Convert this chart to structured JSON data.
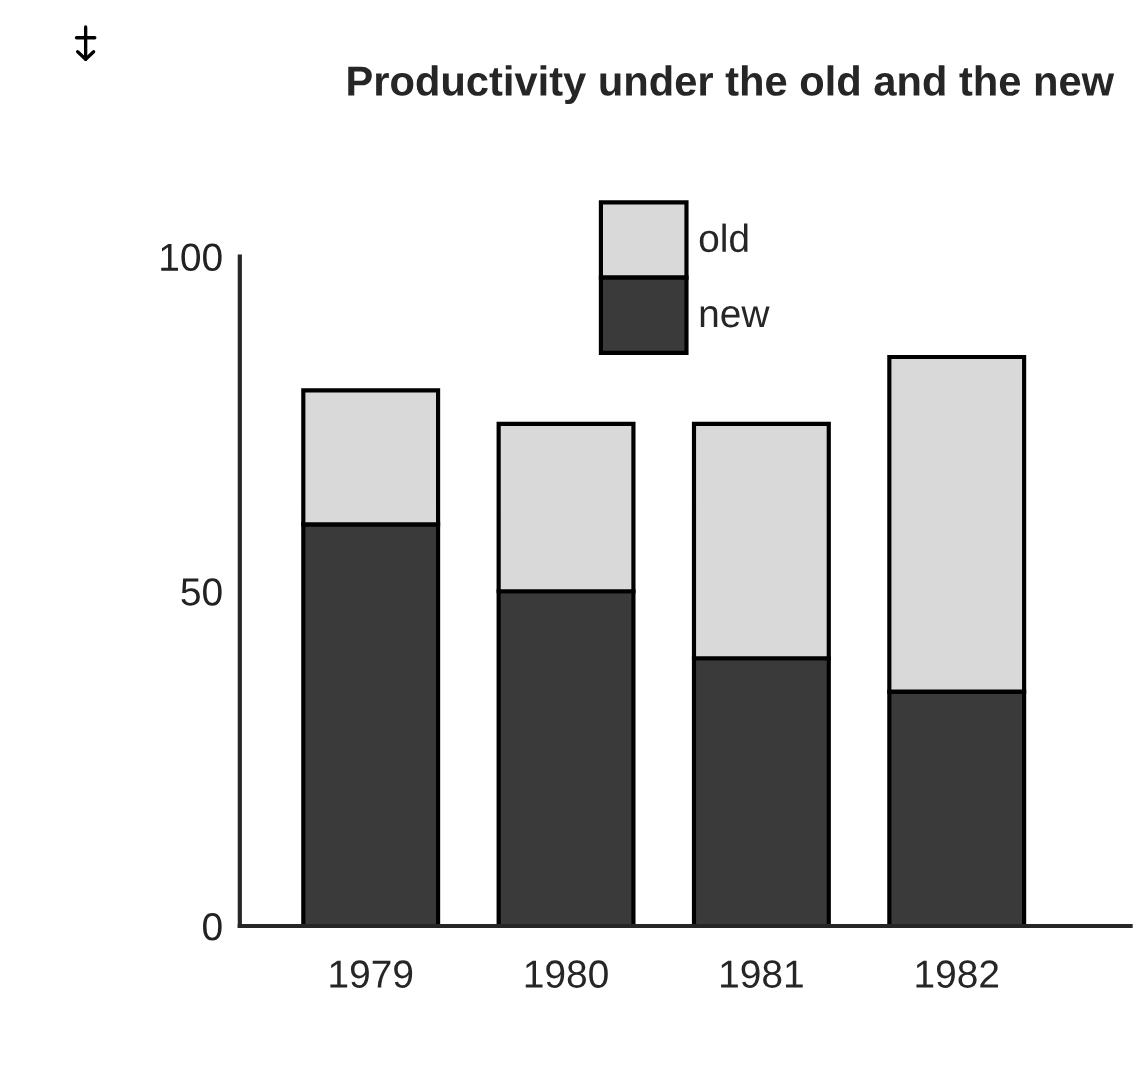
{
  "chart_data": {
    "type": "bar",
    "title": "Productivity under the old and the new",
    "categories": [
      "1979",
      "1980",
      "1981",
      "1982"
    ],
    "stacked": true,
    "series": [
      {
        "name": "new",
        "color": "#3a3a3a",
        "values": [
          60,
          50,
          40,
          35
        ]
      },
      {
        "name": "old",
        "color": "#d9d9d9",
        "values": [
          20,
          25,
          35,
          50
        ]
      }
    ],
    "ylim": [
      0,
      100
    ],
    "yticks": [
      0,
      50,
      100
    ],
    "grid": false,
    "legend": "top"
  }
}
